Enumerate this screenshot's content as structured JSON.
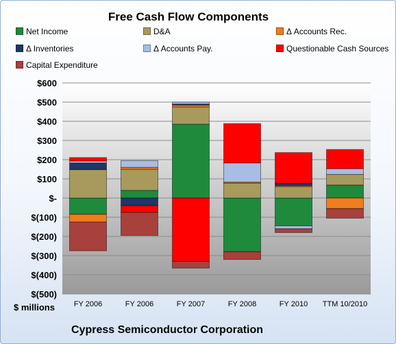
{
  "chart_data": {
    "type": "bar",
    "stacked": true,
    "title": "Free Cash Flow Components",
    "ylabel": "$ millions",
    "ylim": [
      -500,
      600
    ],
    "yticks": [
      {
        "value": 600,
        "label": "$600"
      },
      {
        "value": 500,
        "label": "$500"
      },
      {
        "value": 400,
        "label": "$400"
      },
      {
        "value": 300,
        "label": "$300"
      },
      {
        "value": 200,
        "label": "$200"
      },
      {
        "value": 100,
        "label": "$100"
      },
      {
        "value": 0,
        "label": "$-"
      },
      {
        "value": -100,
        "label": "$(100)"
      },
      {
        "value": -200,
        "label": "$(200)"
      },
      {
        "value": -300,
        "label": "$(300)"
      },
      {
        "value": -400,
        "label": "$(400)"
      },
      {
        "value": -500,
        "label": "$(500)"
      }
    ],
    "categories": [
      "FY 2006",
      "FY 2006",
      "FY 2007",
      "FY 2008",
      "FY 2010",
      "TTM 10/2010"
    ],
    "series": [
      {
        "name": "Net Income",
        "color": "#1f8a3c",
        "values": [
          -85,
          40,
          385,
          -280,
          -145,
          68
        ]
      },
      {
        "name": "D&A",
        "color": "#a89a5c",
        "values": [
          148,
          110,
          90,
          78,
          60,
          55
        ]
      },
      {
        "name": "Δ Accounts Rec.",
        "color": "#f07d1e",
        "values": [
          -40,
          10,
          10,
          5,
          5,
          -55
        ]
      },
      {
        "name": "Δ Inventories",
        "color": "#1f3864",
        "values": [
          35,
          -40,
          5,
          0,
          12,
          0
        ]
      },
      {
        "name": "Δ Accounts Pay.",
        "color": "#a7bde3",
        "values": [
          10,
          35,
          10,
          100,
          -15,
          30
        ]
      },
      {
        "name": "Questionable Cash Sources",
        "color": "#ff0000",
        "values": [
          18,
          -35,
          -330,
          205,
          160,
          100
        ]
      },
      {
        "name": "Capital Expenditure",
        "color": "#a8403c",
        "values": [
          -150,
          -120,
          -35,
          -40,
          -20,
          -50
        ]
      }
    ],
    "grid": true,
    "legend_position": "top"
  },
  "footer": {
    "company": "Cypress Semiconductor Corporation"
  }
}
